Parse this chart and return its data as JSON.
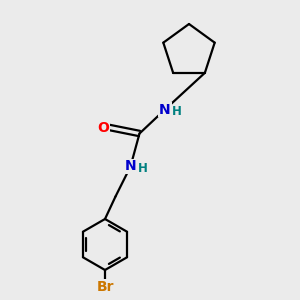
{
  "background_color": "#ebebeb",
  "bond_color": "#000000",
  "atom_colors": {
    "O": "#ff0000",
    "N": "#0000cc",
    "Br": "#cc7700",
    "H": "#008080",
    "C": "#000000"
  },
  "figsize": [
    3.0,
    3.0
  ],
  "dpi": 100,
  "bond_lw": 1.6,
  "font_size_atom": 10,
  "font_size_h": 8.5
}
